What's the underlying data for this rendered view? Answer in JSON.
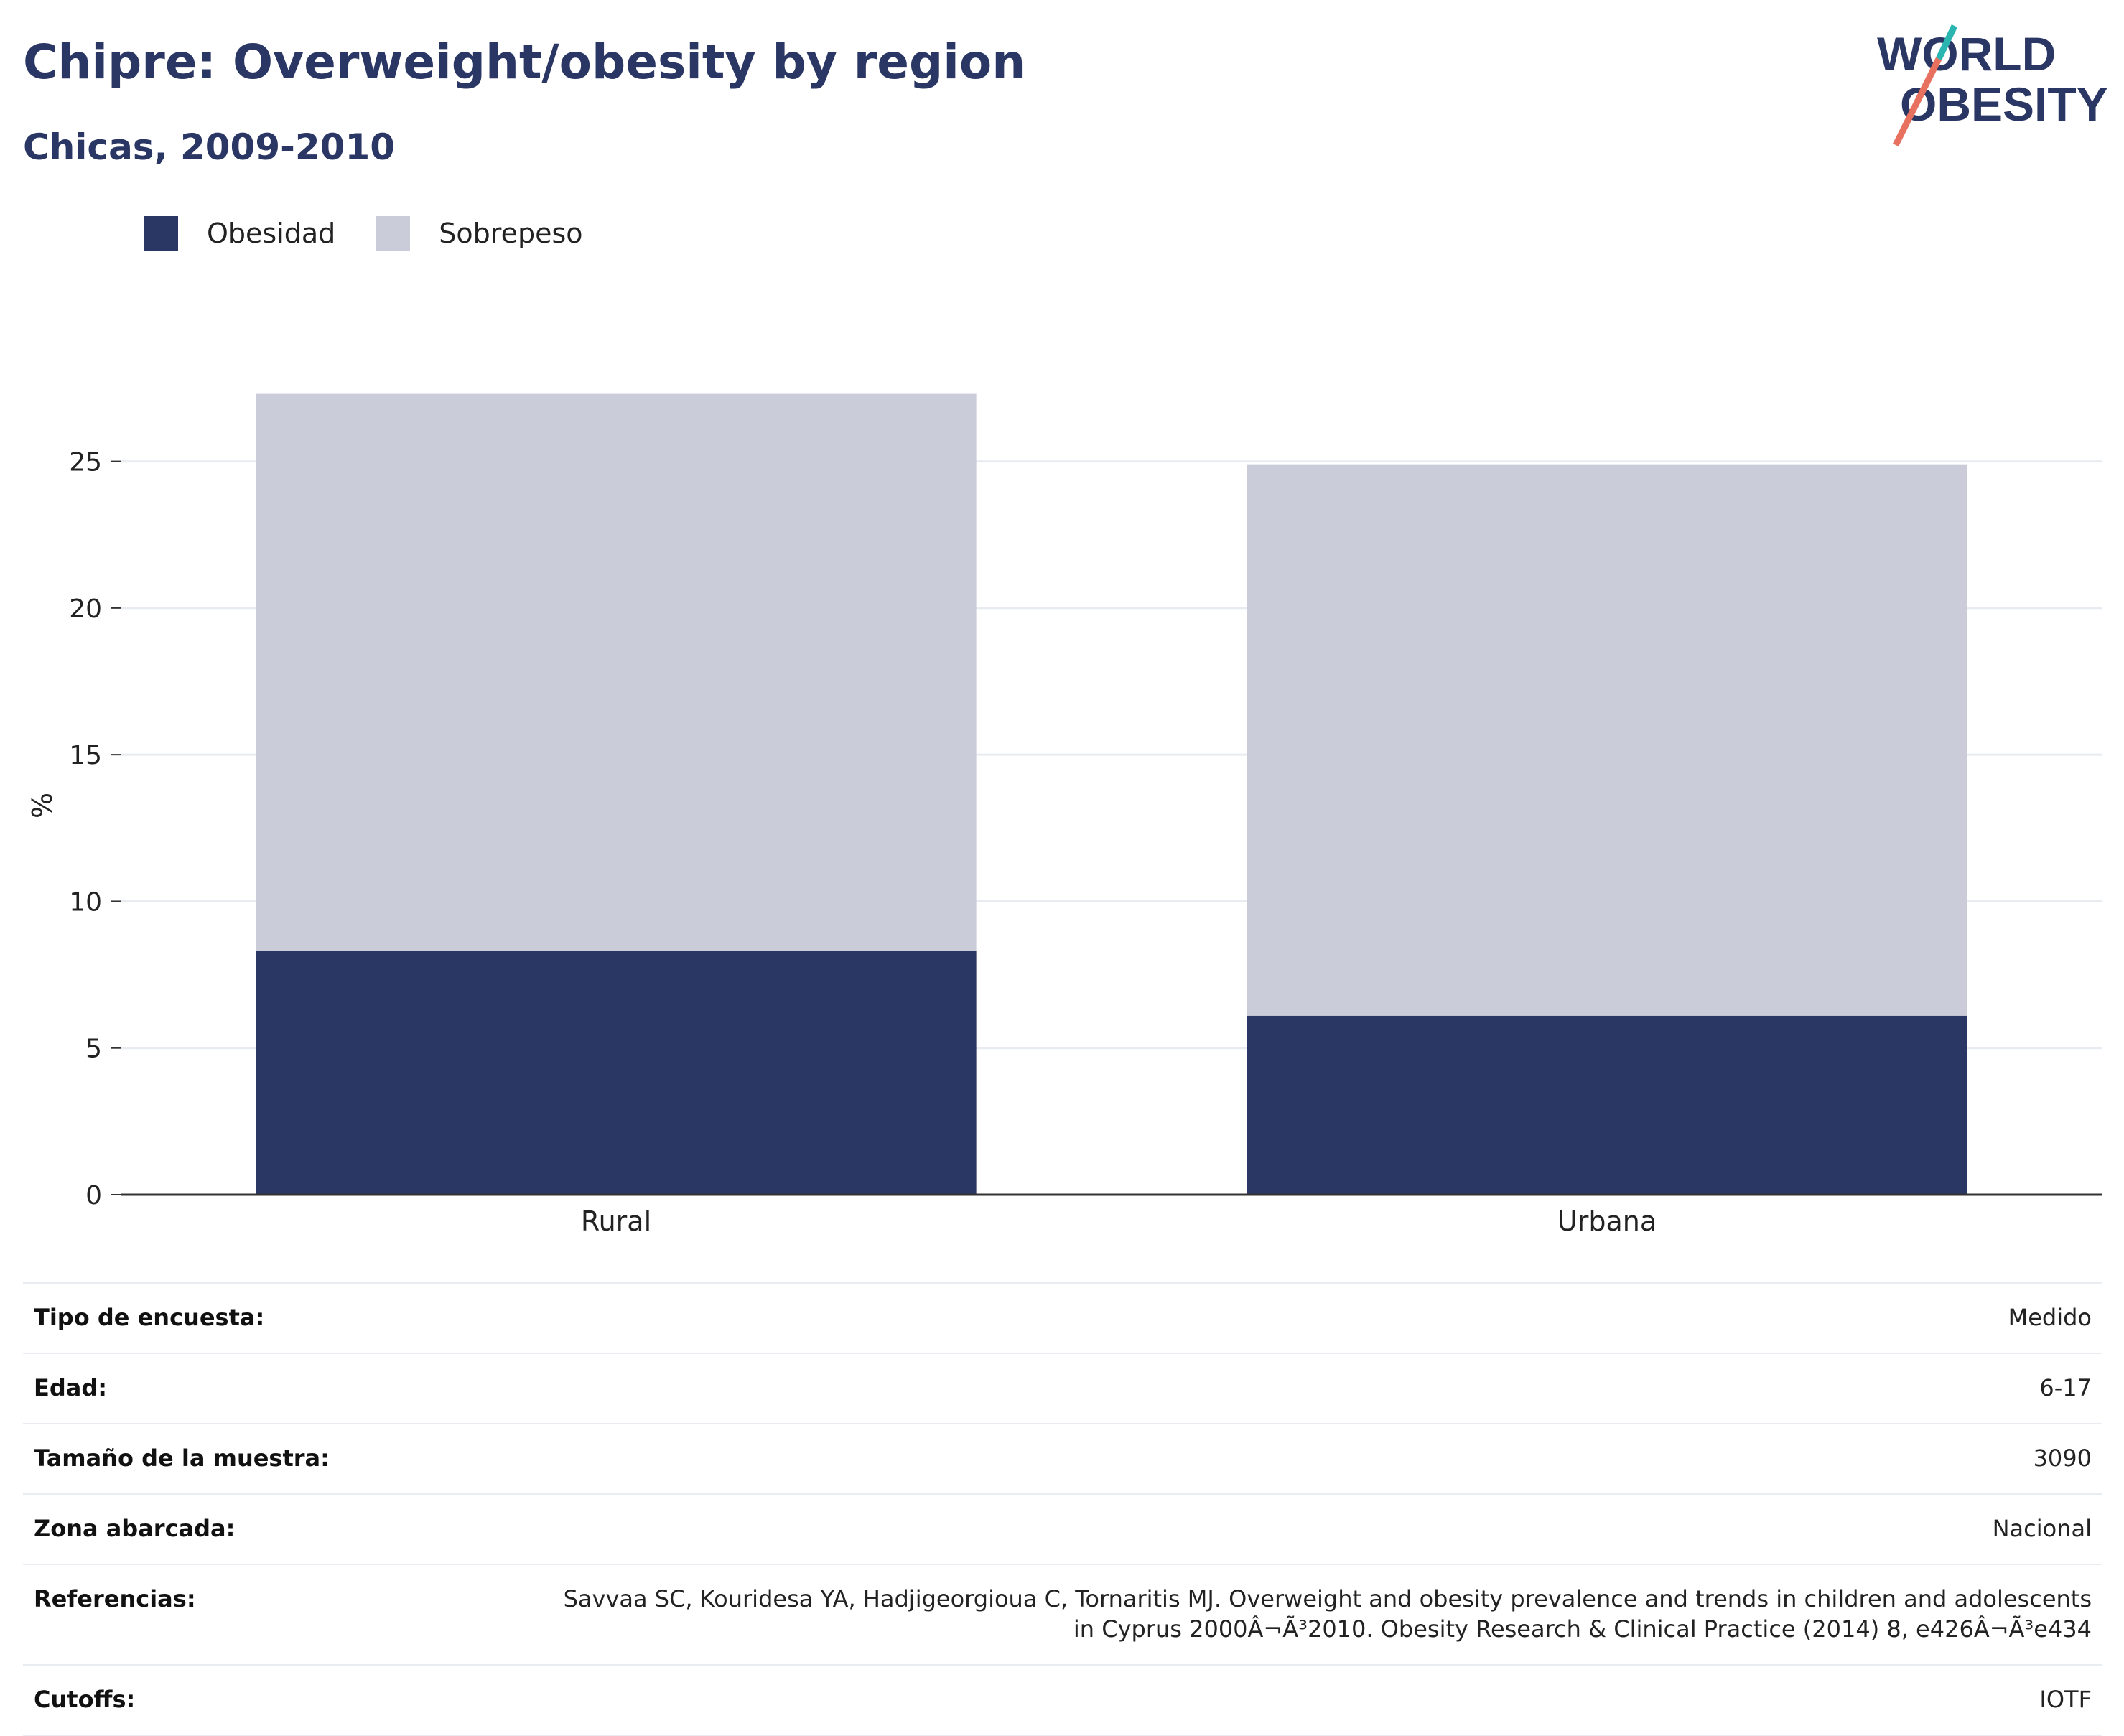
{
  "header": {
    "title": "Chipre: Overweight/obesity by region",
    "subtitle": "Chicas, 2009-2010",
    "logo_line1": "WORLD",
    "logo_line2": "OBESITY"
  },
  "legend": [
    {
      "label": "Obesidad",
      "color": "#2a3663"
    },
    {
      "label": "Sobrepeso",
      "color": "#cacdd9"
    }
  ],
  "chart_data": {
    "type": "bar",
    "stacked": true,
    "categories": [
      "Rural",
      "Urbana"
    ],
    "series": [
      {
        "name": "Obesidad",
        "values": [
          8.3,
          6.1
        ],
        "color": "#2a3663"
      },
      {
        "name": "Sobrepeso",
        "values": [
          19.0,
          18.8
        ],
        "color": "#cacdd9"
      }
    ],
    "ylabel": "%",
    "ylim": [
      0,
      28
    ],
    "yticks": [
      0,
      5,
      10,
      15,
      20,
      25
    ],
    "grid": true,
    "legend_position": "top-left"
  },
  "info": [
    {
      "label": "Tipo de encuesta:",
      "value": "Medido"
    },
    {
      "label": "Edad:",
      "value": "6-17"
    },
    {
      "label": "Tamaño de la muestra:",
      "value": "3090"
    },
    {
      "label": "Zona abarcada:",
      "value": "Nacional"
    },
    {
      "label": "Referencias:",
      "value": "Savvaa SC, Kouridesa YA, Hadjigeorgioua C, Tornaritis MJ. Overweight and obesity prevalence and trends in children and adolescents in Cyprus 2000Â¬Ã³2010. Obesity Research & Clinical Practice (2014) 8, e426Â¬Ã³e434"
    },
    {
      "label": "Cutoffs:",
      "value": "IOTF"
    }
  ]
}
